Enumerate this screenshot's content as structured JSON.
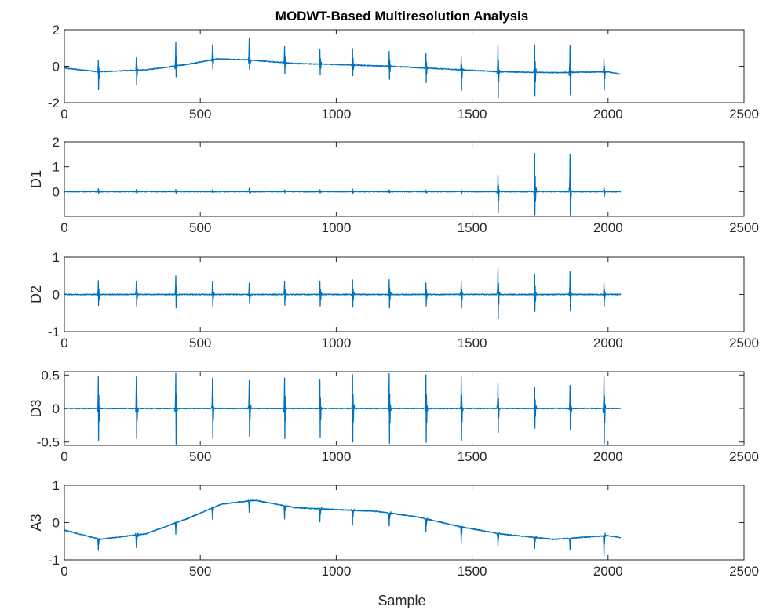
{
  "chart_data": {
    "type": "line",
    "title": "MODWT-Based Multiresolution Analysis",
    "xlabel": "Sample",
    "xlim": [
      0,
      2500
    ],
    "x_ticks": [
      0,
      500,
      1000,
      1500,
      2000,
      2500
    ],
    "n_samples": 2048,
    "line_color": "#0072BD",
    "beat_locations": [
      125,
      265,
      410,
      545,
      680,
      810,
      940,
      1060,
      1195,
      1330,
      1460,
      1595,
      1730,
      1860,
      1985
    ],
    "panels": [
      {
        "id": "signal",
        "ylabel": "",
        "ylim": [
          -2,
          2
        ],
        "y_ticks": [
          -2,
          0,
          2
        ],
        "trend": [
          [
            0,
            -0.1
          ],
          [
            125,
            -0.3
          ],
          [
            300,
            -0.2
          ],
          [
            450,
            0.1
          ],
          [
            560,
            0.4
          ],
          [
            680,
            0.35
          ],
          [
            850,
            0.15
          ],
          [
            1000,
            0.1
          ],
          [
            1200,
            0.0
          ],
          [
            1400,
            -0.15
          ],
          [
            1600,
            -0.3
          ],
          [
            1800,
            -0.35
          ],
          [
            2000,
            -0.3
          ],
          [
            2047,
            -0.45
          ]
        ],
        "spike_amplitudes": [
          0.6,
          0.7,
          1.3,
          0.8,
          1.2,
          0.9,
          0.8,
          0.9,
          0.8,
          0.8,
          0.7,
          1.5,
          1.5,
          1.5,
          0.7
        ],
        "spike_down": [
          -1.0,
          -0.8,
          -0.6,
          -0.5,
          -0.5,
          -0.6,
          -0.6,
          -0.6,
          -0.7,
          -0.8,
          -1.1,
          -1.4,
          -1.3,
          -1.2,
          -1.0
        ]
      },
      {
        "id": "D1",
        "ylabel": "D1",
        "ylim": [
          -1,
          2
        ],
        "y_ticks": [
          0,
          1,
          2
        ],
        "spike_amplitudes": [
          0.1,
          0.08,
          0.08,
          0.08,
          0.15,
          0.08,
          0.08,
          0.1,
          0.08,
          0.08,
          0.08,
          0.65,
          1.55,
          1.5,
          0.2
        ],
        "spike_down": [
          -0.08,
          -0.06,
          -0.06,
          -0.06,
          -0.1,
          -0.06,
          -0.06,
          -0.08,
          -0.06,
          -0.06,
          -0.06,
          -0.85,
          -0.95,
          -0.95,
          -0.2
        ]
      },
      {
        "id": "D2",
        "ylabel": "D2",
        "ylim": [
          -1,
          1
        ],
        "y_ticks": [
          -1,
          0,
          1
        ],
        "spike_amplitudes": [
          0.38,
          0.35,
          0.5,
          0.35,
          0.3,
          0.35,
          0.35,
          0.4,
          0.4,
          0.3,
          0.35,
          0.72,
          0.55,
          0.6,
          0.3
        ],
        "spike_down": [
          -0.3,
          -0.3,
          -0.35,
          -0.3,
          -0.25,
          -0.3,
          -0.3,
          -0.35,
          -0.35,
          -0.3,
          -0.35,
          -0.65,
          -0.45,
          -0.45,
          -0.3
        ]
      },
      {
        "id": "D3",
        "ylabel": "D3",
        "ylim": [
          -0.55,
          0.55
        ],
        "y_ticks": [
          -0.5,
          0,
          0.5
        ],
        "spike_amplitudes": [
          0.48,
          0.47,
          0.53,
          0.45,
          0.42,
          0.45,
          0.42,
          0.5,
          0.52,
          0.5,
          0.48,
          0.38,
          0.32,
          0.35,
          0.48
        ],
        "spike_down": [
          -0.48,
          -0.45,
          -0.55,
          -0.45,
          -0.42,
          -0.45,
          -0.42,
          -0.5,
          -0.52,
          -0.5,
          -0.48,
          -0.35,
          -0.3,
          -0.32,
          -0.52
        ]
      },
      {
        "id": "A3",
        "ylabel": "A3",
        "ylim": [
          -1,
          1
        ],
        "y_ticks": [
          -1,
          0,
          1
        ],
        "trend": [
          [
            0,
            -0.2
          ],
          [
            130,
            -0.45
          ],
          [
            300,
            -0.3
          ],
          [
            450,
            0.1
          ],
          [
            580,
            0.5
          ],
          [
            700,
            0.6
          ],
          [
            850,
            0.4
          ],
          [
            1000,
            0.35
          ],
          [
            1150,
            0.3
          ],
          [
            1300,
            0.15
          ],
          [
            1450,
            -0.1
          ],
          [
            1600,
            -0.3
          ],
          [
            1800,
            -0.45
          ],
          [
            2000,
            -0.35
          ],
          [
            2047,
            -0.4
          ]
        ],
        "spike_amplitudes": [
          -0.3,
          -0.35,
          -0.3,
          -0.3,
          -0.3,
          -0.35,
          -0.35,
          -0.4,
          -0.35,
          -0.35,
          -0.45,
          -0.35,
          -0.3,
          -0.3,
          -0.55
        ],
        "spike_down": [
          0,
          0,
          0,
          0,
          0,
          0,
          0,
          0,
          0,
          0,
          0,
          0,
          0,
          0,
          0
        ]
      }
    ]
  }
}
